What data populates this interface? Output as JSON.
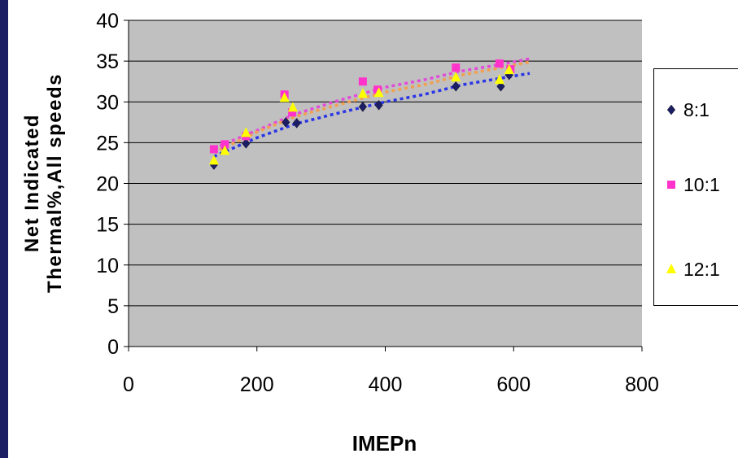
{
  "chart_data": {
    "type": "scatter",
    "title": "",
    "xlabel": "IMEPn",
    "ylabel_lines": [
      "Net Indicated",
      "Thermal%,All speeds"
    ],
    "xlim": [
      0,
      800
    ],
    "ylim": [
      0,
      40
    ],
    "xticks": [
      0,
      200,
      400,
      600,
      800
    ],
    "yticks": [
      0,
      5,
      10,
      15,
      20,
      25,
      30,
      35,
      40
    ],
    "grid": "horizontal",
    "plot_background": "#c0c0c0",
    "legend_placement": "right",
    "series": [
      {
        "name": "8:1",
        "marker": "diamond",
        "color": "#1c1e63",
        "trend_color": "#2a35e6",
        "points": [
          [
            133,
            22.3
          ],
          [
            150,
            24.5
          ],
          [
            183,
            24.9
          ],
          [
            245,
            27.5
          ],
          [
            262,
            27.4
          ],
          [
            365,
            29.4
          ],
          [
            390,
            29.6
          ],
          [
            510,
            31.9
          ],
          [
            580,
            31.9
          ],
          [
            593,
            33.3
          ]
        ],
        "trend": [
          [
            133,
            23.3
          ],
          [
            200,
            25.6
          ],
          [
            260,
            27.3
          ],
          [
            320,
            28.5
          ],
          [
            400,
            30.0
          ],
          [
            460,
            30.9
          ],
          [
            520,
            32.1
          ],
          [
            580,
            32.9
          ],
          [
            625,
            33.5
          ]
        ]
      },
      {
        "name": "10:1",
        "marker": "square",
        "color": "#ff33cc",
        "trend_color": "#e24bd8",
        "points": [
          [
            133,
            24.2
          ],
          [
            150,
            24.8
          ],
          [
            183,
            25.8
          ],
          [
            243,
            30.9
          ],
          [
            255,
            28.7
          ],
          [
            365,
            32.5
          ],
          [
            388,
            31.5
          ],
          [
            510,
            34.2
          ],
          [
            578,
            34.7
          ],
          [
            595,
            34.0
          ]
        ],
        "trend": [
          [
            133,
            24.3
          ],
          [
            200,
            26.5
          ],
          [
            260,
            28.5
          ],
          [
            320,
            30.0
          ],
          [
            400,
            31.8
          ],
          [
            460,
            32.7
          ],
          [
            520,
            33.8
          ],
          [
            580,
            34.6
          ],
          [
            625,
            35.3
          ]
        ]
      },
      {
        "name": "12:1",
        "marker": "triangle",
        "color": "#ffff00",
        "trend_color": "#f29f4f",
        "points": [
          [
            133,
            22.8
          ],
          [
            150,
            24.0
          ],
          [
            183,
            26.2
          ],
          [
            243,
            30.5
          ],
          [
            256,
            29.3
          ],
          [
            365,
            31.0
          ],
          [
            390,
            31.1
          ],
          [
            510,
            33.0
          ],
          [
            578,
            32.7
          ],
          [
            593,
            33.9
          ]
        ],
        "trend": [
          [
            133,
            23.8
          ],
          [
            200,
            26.3
          ],
          [
            260,
            28.2
          ],
          [
            320,
            29.5
          ],
          [
            400,
            31.2
          ],
          [
            460,
            32.1
          ],
          [
            520,
            33.3
          ],
          [
            580,
            34.2
          ],
          [
            625,
            34.9
          ]
        ]
      }
    ]
  }
}
